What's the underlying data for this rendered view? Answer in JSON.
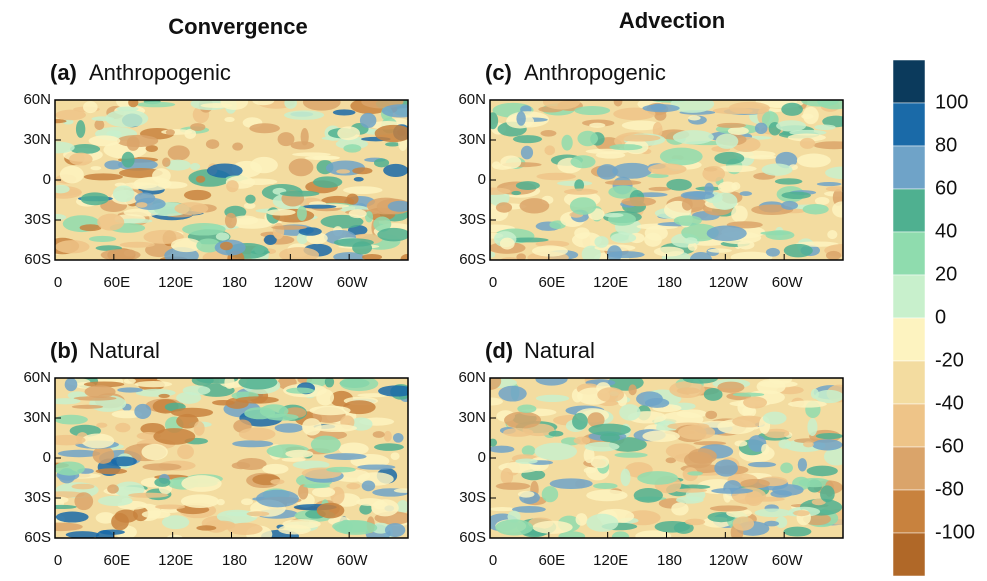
{
  "columns": [
    "Convergence",
    "Advection"
  ],
  "panels": [
    {
      "tag": "(a)",
      "title": "Anthropogenic"
    },
    {
      "tag": "(b)",
      "title": "Natural"
    },
    {
      "tag": "(c)",
      "title": "Anthropogenic"
    },
    {
      "tag": "(d)",
      "title": "Natural"
    }
  ],
  "lat_ticks": [
    "60N",
    "30N",
    "0",
    "30S",
    "60S"
  ],
  "lon_ticks": [
    "0",
    "60E",
    "120E",
    "180",
    "120W",
    "60W"
  ],
  "colorbar": {
    "labels": [
      100,
      80,
      60,
      40,
      20,
      0,
      -20,
      -40,
      -60,
      -80,
      -100
    ],
    "colors": [
      "#0b3a5c",
      "#1a6aa8",
      "#6fa3c8",
      "#4fb090",
      "#8fdcae",
      "#c8f0cc",
      "#fdf3c0",
      "#f3dca0",
      "#eec488",
      "#daa46a",
      "#c8823e",
      "#b06828"
    ]
  }
}
